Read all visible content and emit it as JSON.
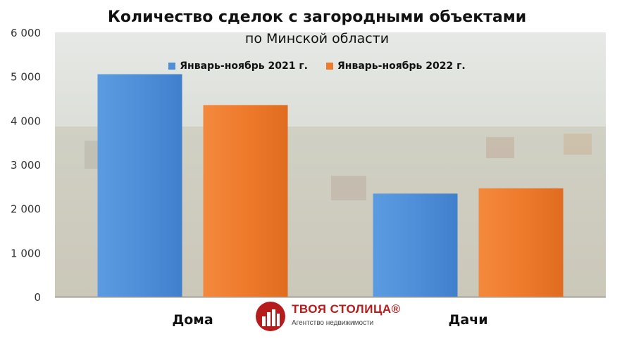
{
  "chart_data": {
    "type": "bar",
    "title": "Количество сделок с загородными объектами",
    "subtitle": "по Минской области",
    "categories": [
      "Дома",
      "Дачи"
    ],
    "series": [
      {
        "name": "Январь-ноябрь 2021 г.",
        "color": "#4f8fd9",
        "values": [
          5050,
          2340
        ]
      },
      {
        "name": "Январь-ноябрь 2022 г.",
        "color": "#ef7a2c",
        "values": [
          4350,
          2460
        ]
      }
    ],
    "ylim": [
      0,
      6000
    ],
    "yticks": [
      "0",
      "1 000",
      "2 000",
      "3 000",
      "4 000",
      "5 000",
      "6 000"
    ],
    "legend_position": "top-center",
    "background": "photo of suburban houses"
  },
  "logo": {
    "name": "ТВОЯ СТОЛИЦА®",
    "subtitle": "Агентство недвижимости",
    "color": "#b71c1c"
  }
}
